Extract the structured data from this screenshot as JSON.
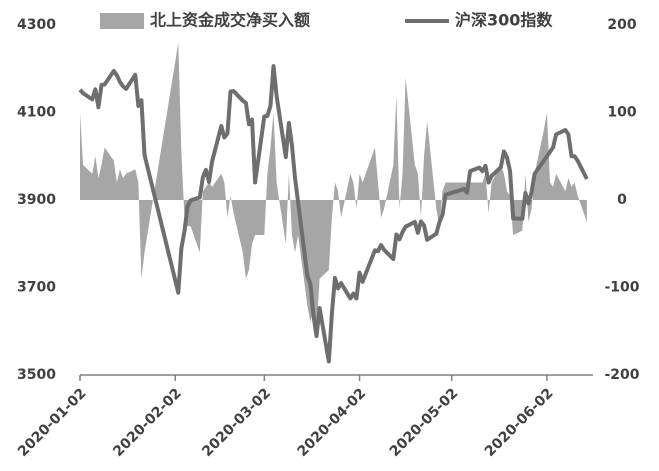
{
  "chart_data": {
    "type": "combo",
    "x": [
      "2020-01-02",
      "2020-01-03",
      "2020-01-06",
      "2020-01-07",
      "2020-01-08",
      "2020-01-09",
      "2020-01-10",
      "2020-01-13",
      "2020-01-14",
      "2020-01-15",
      "2020-01-16",
      "2020-01-17",
      "2020-01-20",
      "2020-01-21",
      "2020-01-22",
      "2020-01-23",
      "2020-02-03",
      "2020-02-04",
      "2020-02-05",
      "2020-02-06",
      "2020-02-07",
      "2020-02-10",
      "2020-02-11",
      "2020-02-12",
      "2020-02-13",
      "2020-02-14",
      "2020-02-17",
      "2020-02-18",
      "2020-02-19",
      "2020-02-20",
      "2020-02-21",
      "2020-02-24",
      "2020-02-25",
      "2020-02-26",
      "2020-02-27",
      "2020-02-28",
      "2020-03-02",
      "2020-03-03",
      "2020-03-04",
      "2020-03-05",
      "2020-03-06",
      "2020-03-09",
      "2020-03-10",
      "2020-03-11",
      "2020-03-12",
      "2020-03-13",
      "2020-03-16",
      "2020-03-17",
      "2020-03-18",
      "2020-03-19",
      "2020-03-20",
      "2020-03-23",
      "2020-03-24",
      "2020-03-25",
      "2020-03-26",
      "2020-03-27",
      "2020-03-30",
      "2020-03-31",
      "2020-04-01",
      "2020-04-02",
      "2020-04-03",
      "2020-04-07",
      "2020-04-08",
      "2020-04-09",
      "2020-04-10",
      "2020-04-13",
      "2020-04-14",
      "2020-04-15",
      "2020-04-16",
      "2020-04-17",
      "2020-04-20",
      "2020-04-21",
      "2020-04-22",
      "2020-04-23",
      "2020-04-24",
      "2020-04-27",
      "2020-04-28",
      "2020-04-29",
      "2020-04-30",
      "2020-05-06",
      "2020-05-07",
      "2020-05-08",
      "2020-05-11",
      "2020-05-12",
      "2020-05-13",
      "2020-05-14",
      "2020-05-15",
      "2020-05-18",
      "2020-05-19",
      "2020-05-20",
      "2020-05-21",
      "2020-05-22",
      "2020-05-25",
      "2020-05-26",
      "2020-05-27",
      "2020-05-28",
      "2020-05-29",
      "2020-06-01",
      "2020-06-02",
      "2020-06-03",
      "2020-06-04",
      "2020-06-05",
      "2020-06-08",
      "2020-06-09",
      "2020-06-10",
      "2020-06-11",
      "2020-06-12",
      "2020-06-15"
    ],
    "series": [
      {
        "name": "北上资金成交净买入额",
        "type": "area",
        "axis": "y2",
        "color": "#a6a6a6",
        "values": [
          100,
          40,
          30,
          50,
          25,
          40,
          60,
          45,
          20,
          35,
          25,
          30,
          35,
          20,
          -90,
          -60,
          180,
          55,
          -20,
          -30,
          -30,
          -60,
          10,
          15,
          20,
          15,
          30,
          20,
          -20,
          5,
          -15,
          -60,
          -90,
          -80,
          -50,
          -40,
          -40,
          30,
          60,
          100,
          20,
          -50,
          30,
          -40,
          -60,
          -40,
          -120,
          -140,
          -120,
          -150,
          -90,
          -80,
          -20,
          20,
          10,
          -20,
          30,
          20,
          -10,
          30,
          20,
          60,
          20,
          -20,
          -10,
          40,
          120,
          -10,
          30,
          140,
          40,
          30,
          -20,
          50,
          90,
          -10,
          -30,
          10,
          20,
          20,
          20,
          20,
          20,
          20,
          30,
          -15,
          20,
          40,
          30,
          10,
          5,
          -40,
          -35,
          30,
          -25,
          -10,
          30,
          80,
          100,
          20,
          15,
          30,
          10,
          25,
          15,
          20,
          5,
          -25
        ]
      },
      {
        "name": "沪深300指数",
        "type": "line",
        "axis": "y",
        "color": "#6e6e6e",
        "values": [
          4152,
          4144,
          4130,
          4153,
          4112,
          4163,
          4164,
          4195,
          4185,
          4170,
          4160,
          4154,
          4186,
          4115,
          4128,
          4003,
          3688,
          3790,
          3828,
          3885,
          3899,
          3906,
          3952,
          3969,
          3941,
          3988,
          4069,
          4043,
          4052,
          4148,
          4149,
          4127,
          4122,
          4073,
          4084,
          3940,
          4091,
          4092,
          4115,
          4206,
          4138,
          3998,
          4076,
          4025,
          3950,
          3895,
          3727,
          3708,
          3636,
          3589,
          3653,
          3531,
          3641,
          3722,
          3698,
          3710,
          3675,
          3686,
          3675,
          3734,
          3713,
          3785,
          3783,
          3797,
          3786,
          3765,
          3821,
          3810,
          3827,
          3839,
          3850,
          3825,
          3851,
          3842,
          3809,
          3823,
          3849,
          3866,
          3912,
          3925,
          3917,
          3966,
          3974,
          3966,
          3978,
          3940,
          3955,
          3975,
          4011,
          3997,
          3966,
          3858,
          3857,
          3916,
          3892,
          3918,
          3960,
          3990,
          4000,
          4010,
          4020,
          4050,
          4060,
          4050,
          4000,
          4000,
          3990,
          3948
        ]
      }
    ],
    "xlim": [
      "2020-01-02",
      "2020-06-17"
    ],
    "xticks": [
      "2020-01-02",
      "2020-02-02",
      "2020-03-02",
      "2020-04-02",
      "2020-05-02",
      "2020-06-02"
    ],
    "ylim": [
      3500,
      4300
    ],
    "yticks": [
      3500,
      3700,
      3900,
      4100,
      4300
    ],
    "y2lim": [
      -200,
      200
    ],
    "y2ticks": [
      -200,
      -100,
      0,
      100,
      200
    ],
    "grid": false,
    "legend": "top"
  }
}
